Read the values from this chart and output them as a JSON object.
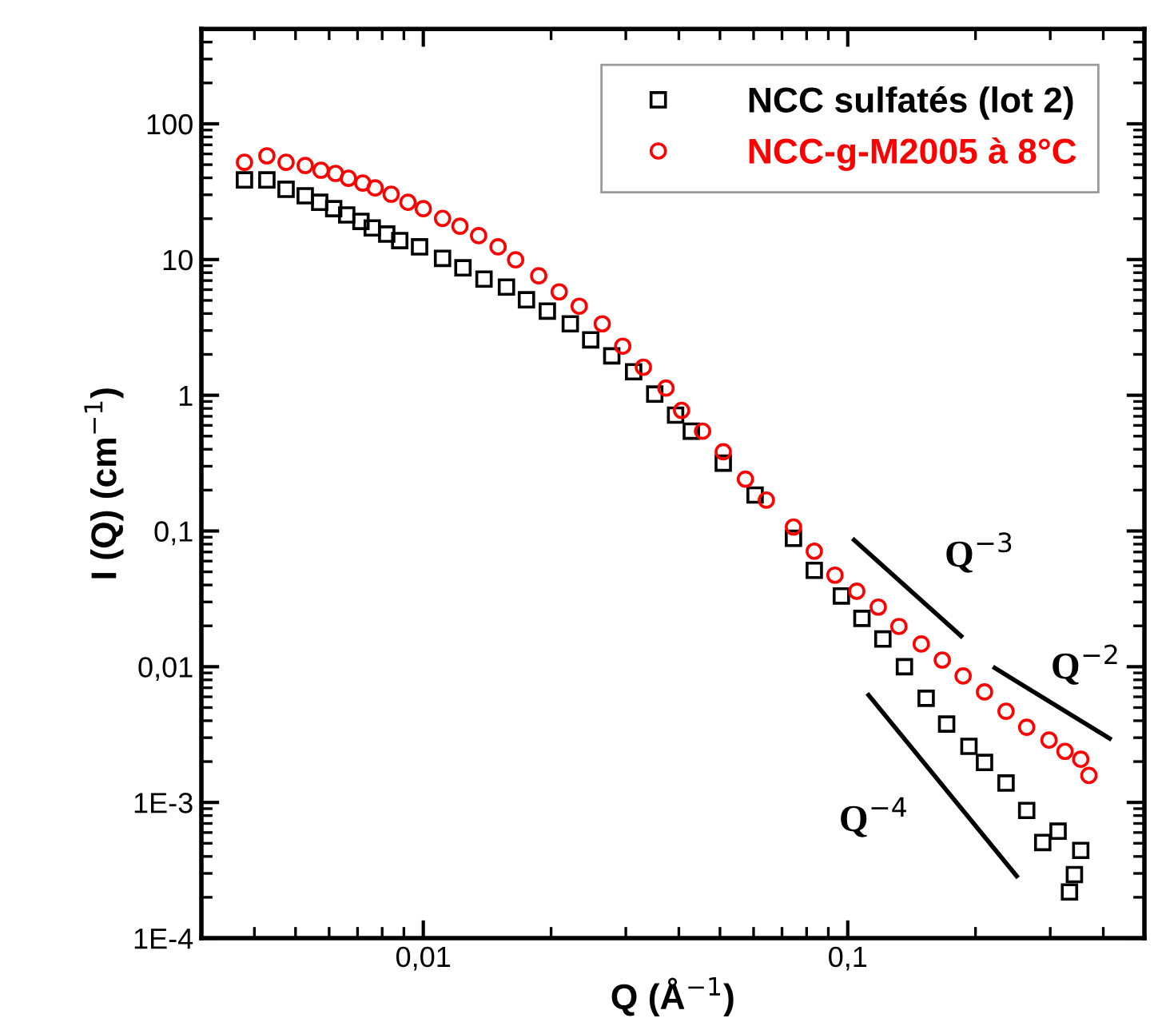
{
  "chart_data": {
    "type": "scatter",
    "xlabel": "Q (Å$^{−1}$)",
    "ylabel": "I (Q) (cm$^{−1}$)",
    "log": "xy",
    "xlim": [
      0.003,
      0.5
    ],
    "ylim": [
      0.0001,
      500
    ],
    "xticks": [
      {
        "value": 0.01,
        "label": "0,01"
      },
      {
        "value": 0.1,
        "label": "0,1"
      }
    ],
    "yticks": [
      {
        "value": 0.0001,
        "label": "1E-4"
      },
      {
        "value": 0.001,
        "label": "1E-3"
      },
      {
        "value": 0.01,
        "label": "0,01"
      },
      {
        "value": 0.1,
        "label": "0,1"
      },
      1,
      10,
      100
    ],
    "grid": false,
    "legend": "top right",
    "series": [
      {
        "name": "NCC sulfatés (lot 2)",
        "color": "#000000",
        "marker": "square",
        "x": [
          0.00379,
          0.00428,
          0.00475,
          0.00527,
          0.0057,
          0.00615,
          0.0066,
          0.00713,
          0.00758,
          0.0082,
          0.0088,
          0.0098,
          0.0111,
          0.0124,
          0.0139,
          0.0157,
          0.0175,
          0.0196,
          0.0222,
          0.0248,
          0.0278,
          0.0313,
          0.0351,
          0.0393,
          0.0428,
          0.0509,
          0.0605,
          0.0745,
          0.0834,
          0.0966,
          0.108,
          0.121,
          0.136,
          0.153,
          0.171,
          0.193,
          0.21,
          0.236,
          0.264,
          0.288,
          0.313,
          0.354,
          0.342,
          0.333
        ],
        "values": [
          38.6,
          38.6,
          32.9,
          29.5,
          26.4,
          23.7,
          21.3,
          19.1,
          17.1,
          15.4,
          13.8,
          12.4,
          10.2,
          8.69,
          7.18,
          6.27,
          5.05,
          4.17,
          3.36,
          2.56,
          1.95,
          1.49,
          1.02,
          0.714,
          0.544,
          0.316,
          0.184,
          0.0883,
          0.0513,
          0.0332,
          0.0227,
          0.016,
          0.01,
          0.00585,
          0.00378,
          0.00259,
          0.00197,
          0.00139,
          0.000873,
          0.000507,
          0.000614,
          0.000443,
          0.000294,
          0.000219
        ]
      },
      {
        "name": "NCC-g-M2005 à 8°C",
        "color": "#ff0000",
        "marker": "circle",
        "x": [
          0.00379,
          0.00428,
          0.00475,
          0.00527,
          0.00574,
          0.00621,
          0.00666,
          0.0072,
          0.0077,
          0.0084,
          0.0092,
          0.01,
          0.0111,
          0.0122,
          0.0135,
          0.015,
          0.0165,
          0.0187,
          0.0209,
          0.0233,
          0.0264,
          0.0295,
          0.033,
          0.0373,
          0.0406,
          0.0455,
          0.0509,
          0.0574,
          0.0643,
          0.0745,
          0.0834,
          0.0933,
          0.105,
          0.118,
          0.132,
          0.149,
          0.167,
          0.187,
          0.21,
          0.236,
          0.264,
          0.298,
          0.325,
          0.354,
          0.37
        ],
        "values": [
          52.1,
          58.1,
          52.1,
          49.3,
          45.5,
          43.1,
          39.7,
          36.6,
          33.7,
          30.3,
          26.4,
          23.7,
          20.1,
          17.6,
          15.0,
          12.4,
          9.95,
          7.59,
          5.78,
          4.53,
          3.36,
          2.3,
          1.61,
          1.13,
          0.774,
          0.544,
          0.383,
          0.241,
          0.169,
          0.107,
          0.071,
          0.0473,
          0.036,
          0.0275,
          0.0198,
          0.0147,
          0.0112,
          0.00855,
          0.00652,
          0.0047,
          0.00358,
          0.00288,
          0.00238,
          0.00208,
          0.00158
        ]
      },
      {
        "type": "line",
        "color": "#000000",
        "x": [
          0.1035,
          0.185
        ],
        "values": [
          0.0859,
          0.0168
        ]
      },
      {
        "type": "line",
        "color": "#000000",
        "x": [
          0.222,
          0.414
        ],
        "values": [
          0.00979,
          0.00296
        ]
      },
      {
        "type": "line",
        "color": "#000000",
        "x": [
          0.112,
          0.25
        ],
        "values": [
          0.00617,
          0.000287
        ]
      }
    ],
    "annotations": [
      "Q$^{−3}$",
      "Q$^{−2}$",
      "Q$^{−4}$"
    ]
  }
}
